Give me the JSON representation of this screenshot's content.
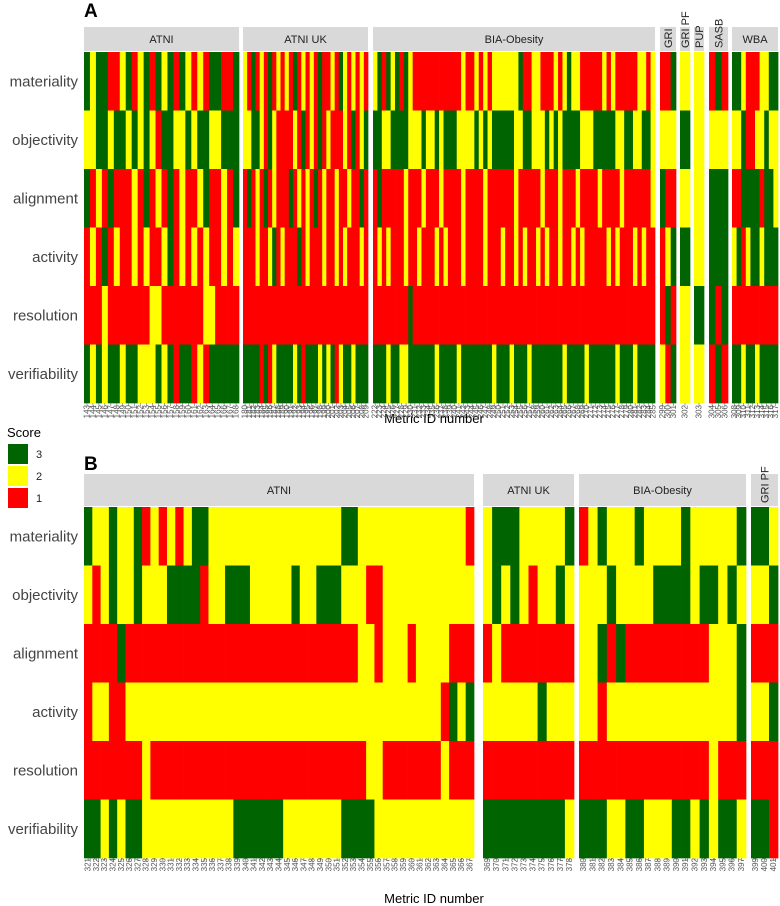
{
  "chart_data": [
    {
      "panel": "A",
      "type": "heatmap",
      "rows": [
        "materiality",
        "objectivity",
        "alignment",
        "activity",
        "resolution",
        "verifiability"
      ],
      "facets": [
        {
          "name": "ATNI",
          "x_start": 143,
          "count": 26
        },
        {
          "name": "ATNI UK",
          "x_start": 180,
          "count": 30
        },
        {
          "name": "BIA-Obesity",
          "x_start": 222,
          "count": 64
        },
        {
          "name": "GRI",
          "x_start": 299,
          "count": 3
        },
        {
          "name": "GRI PF",
          "x_start": 302,
          "count": 1
        },
        {
          "name": "PUP",
          "x_start": 303,
          "count": 1
        },
        {
          "name": "SASB",
          "x_start": 304,
          "count": 3
        },
        {
          "name": "WBA",
          "x_start": 308,
          "count": 10
        }
      ],
      "xlabel": "Metric ID number"
    },
    {
      "panel": "B",
      "type": "heatmap",
      "rows": [
        "materiality",
        "objectivity",
        "alignment",
        "activity",
        "resolution",
        "verifiability"
      ],
      "facets": [
        {
          "name": "ATNI",
          "x_start": 321,
          "count": 47
        },
        {
          "name": "ATNI UK",
          "x_start": 369,
          "count": 10
        },
        {
          "name": "BIA-Obesity",
          "x_start": 380,
          "count": 18
        },
        {
          "name": "GRI PF",
          "x_start": 399,
          "count": 3
        }
      ],
      "xlabel": "Metric ID number"
    }
  ],
  "legend": {
    "title": "Score",
    "items": [
      {
        "label": "3",
        "color": "#006400"
      },
      {
        "label": "2",
        "color": "#FFFF00"
      },
      {
        "label": "1",
        "color": "#FF0000"
      }
    ]
  },
  "colors": {
    "3": "#006400",
    "2": "#FFFF00",
    "1": "#FF0000",
    "facet_strip": "#d9d9d9"
  },
  "scores": {
    "A": {
      "ATNI": {
        "materiality": "32331123123132313212133113",
        "objectivity": "22332332323213322323322333",
        "alignment": "31213111213121312112311213",
        "activity": "12131211212112312121211212",
        "resolution": "11121111111221111111221111",
        "verifiability": "32323323322232313312133333"
      },
      "ATNI UK": {
        "materiality": "213121312121312121311213212121",
        "objectivity": "223321321111213121312111213123",
        "alignment": "131213121113121213121121121131",
        "activity": "111211231211131211121121211121",
        "resolution": "111111111111111111111111111111",
        "verifiability": "333313123333231333232312332333"
      },
      "BIA-Obesity": {
        "materiality": "2313231321111111111121121212222223112211121232211111212111112212",
        "objectivity": "3322333322232232333222232323333322332223232333322233333223322332",
        "alignment": "1311111211121112111121111211111121111121112111211112111121111112",
        "activity": "1212111211211121211121111211121121211212112112121111121211121211",
        "resolution": "1111111131111111111111111111111111111111111111111111111111111111",
        "verifiability": "3332332233333323333233333332333233323333333233332333333233323333"
      },
      "GRI": {
        "materiality": "113",
        "objectivity": "222",
        "alignment": "311",
        "activity": "123",
        "resolution": "131",
        "verifiability": "213"
      },
      "GRI PF": {
        "materiality": "2",
        "objectivity": "3",
        "alignment": "2",
        "activity": "3",
        "resolution": "2",
        "verifiability": "2"
      },
      "PUP": {
        "materiality": "2",
        "objectivity": "2",
        "alignment": "2",
        "activity": "2",
        "resolution": "3",
        "verifiability": "2"
      },
      "SASB": {
        "materiality": "131",
        "objectivity": "222",
        "alignment": "333",
        "activity": "333",
        "resolution": "313",
        "verifiability": "131"
      },
      "WBA": {
        "materiality": "3321112233",
        "objectivity": "2231122322",
        "alignment": "1133331332",
        "activity": "2312332333",
        "resolution": "1111111111",
        "verifiability": "3323323333"
      }
    },
    "B": {
      "ATNI": {
        "materiality": "32232231212123322222222222222223322222222222221",
        "objectivity": "21232232223333122333222223223332221122222222222",
        "alignment": "11113111111111111111111111111111122122212222111",
        "activity": "12211222222222222222222222222222222222222221323",
        "resolution": "11111112111111111111111111111111112211111112111",
        "verifiability": "33232332222222222233333322222223333222222222222"
      },
      "ATNI UK": {
        "materiality": "2333222223",
        "objectivity": "2323212232",
        "alignment": "1211111111",
        "activity": "2222223222",
        "resolution": "1111111111",
        "verifiability": "3333333332"
      },
      "BIA-Obesity": {
        "materiality": "123222322223222223",
        "objectivity": "222322223333233232",
        "alignment": "223131111111112223",
        "activity": "221222222222222223",
        "resolution": "111111111111112111",
        "verifiability": "333223322233232332"
      },
      "GRI PF": {
        "materiality": "332",
        "objectivity": "223",
        "alignment": "111",
        "activity": "223",
        "resolution": "111",
        "verifiability": "331"
      }
    }
  }
}
